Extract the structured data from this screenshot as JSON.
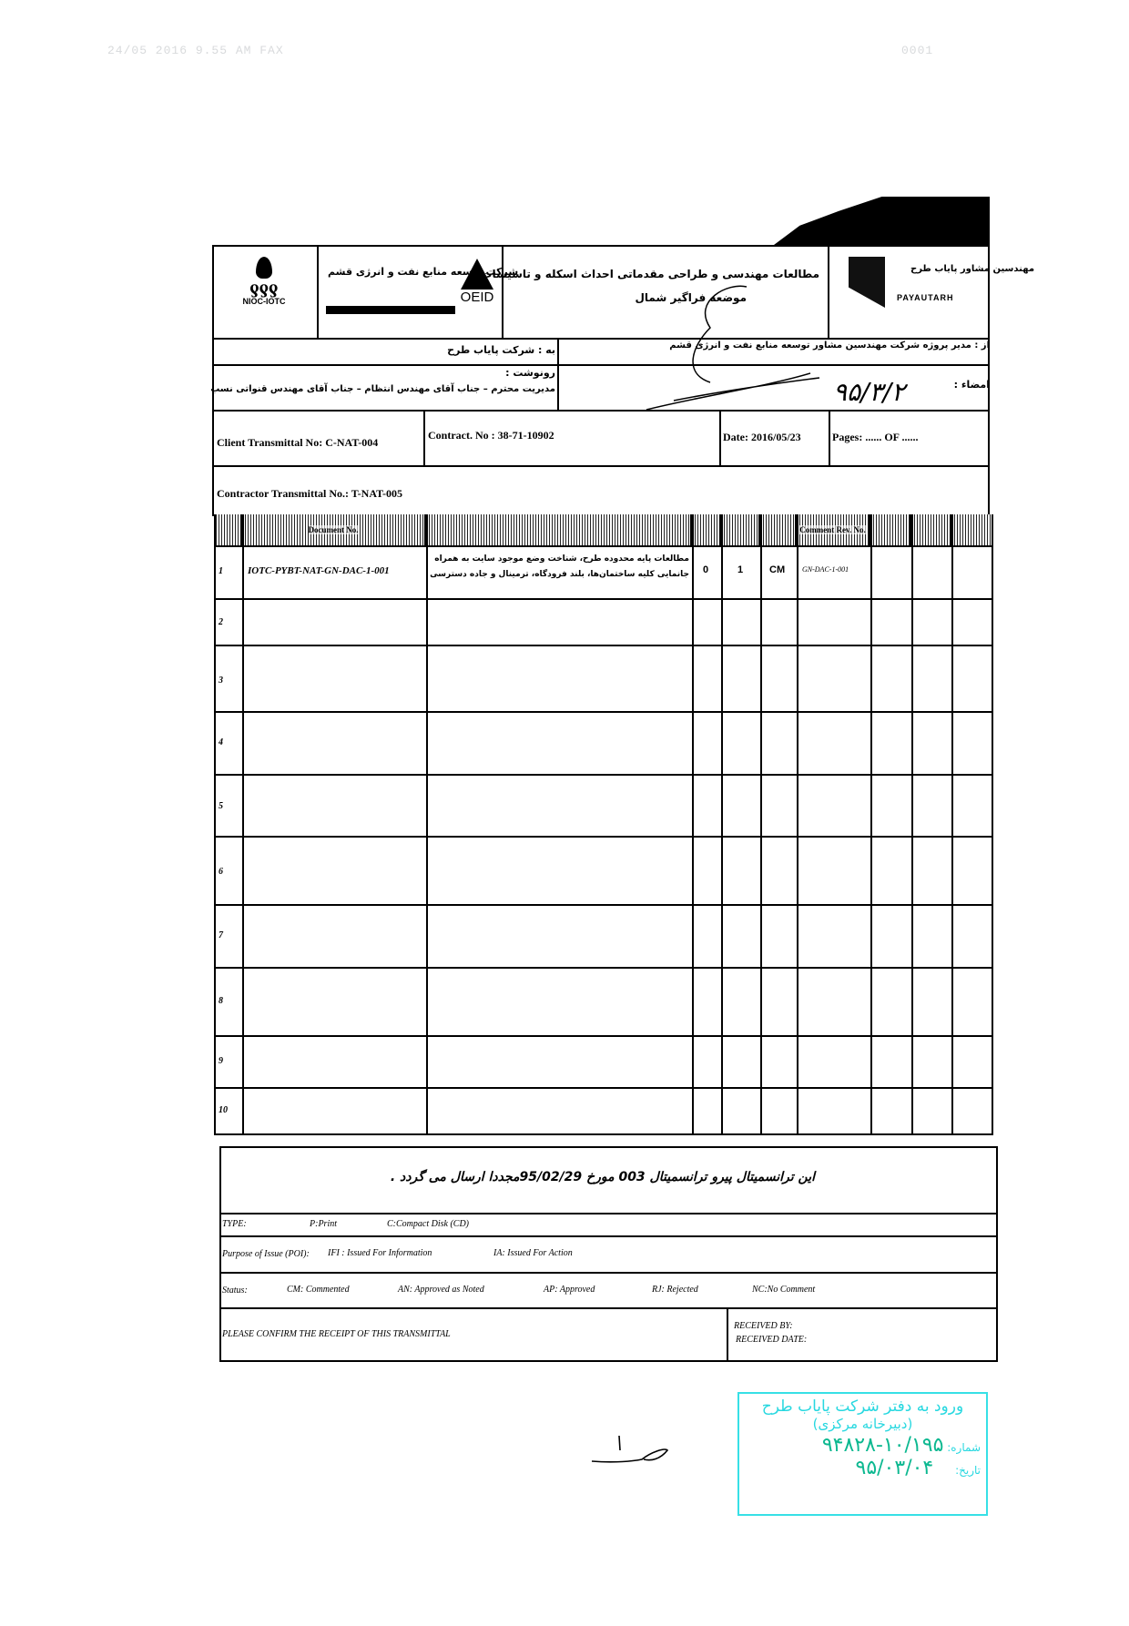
{
  "fax_header": {
    "left": "24/05 2016 9.55 AM FAX",
    "right": "0001"
  },
  "header": {
    "logo_left": "NIOC-IOTC",
    "logo_oeid": "OEID",
    "logo_oeid_fa": "شرکت توسعه منابع نفت و انرژی قشم",
    "title_line1": "مطالعات مهندسی و طراحی مقدماتی احداث اسکله و تاسیسات",
    "title_line2": "موضعه فراگیر شمال",
    "logo_right": "PAYAUTARH",
    "logo_right_fa": "مهندسین مشاور پایاب طرح"
  },
  "addressing": {
    "to": "به : شرکت پایاب طرح",
    "from": "از : مدیر پروژه شرکت مهندسین مشاور توسعه منابع نفت و انرژی قشم",
    "cc_label": "رونوشت :",
    "cc_value": "مدیریت محترم – جناب آقای مهندس انتظام – جناب آقای مهندس قنواتی نسب",
    "signature_label": "امضاء :",
    "signature_date": "۹۵/۳/۲"
  },
  "transmittal": {
    "client": "Client  Transmittal  No: C-NAT-004",
    "contract": "Contract. No :  38-71-10902",
    "date": "Date: 2016/05/23",
    "pages": "Pages: ......    OF ......",
    "contractor": "Contractor Transmittal No.:  T-NAT-005"
  },
  "table": {
    "headers": [
      "",
      "Document No.",
      "",
      "",
      "",
      "",
      "Comment Rev. No.",
      "",
      "",
      ""
    ],
    "rows": [
      {
        "no": "1",
        "doc": "IOTC-PYBT-NAT-GN-DAC-1-001",
        "title": "مطالعات پایه محدوده طرح، شناخت وضع موجود سایت به همراه جانمایی کلیه ساختمان‌ها، بلند فرودگاه، ترمینال و جاده دسترسی",
        "c1": "0",
        "c2": "1",
        "c3": "CM",
        "c4": "GN-DAC-1-001"
      },
      {
        "no": "2"
      },
      {
        "no": "3"
      },
      {
        "no": "4"
      },
      {
        "no": "5"
      },
      {
        "no": "6"
      },
      {
        "no": "7"
      },
      {
        "no": "8"
      },
      {
        "no": "9"
      },
      {
        "no": "10"
      }
    ]
  },
  "footer": {
    "note": "این ترانسمیتال پیرو ترانسمیتال 003 مورخ 95/02/29مجددا ارسال می گردد .",
    "type_label": "TYPE:",
    "type_p": "P:Print",
    "type_c": "C:Compact Disk (CD)",
    "poi_label": "Purpose of  Issue (POI):",
    "poi_ifi": "IFI : Issued For Information",
    "poi_ia": "IA: Issued For Action",
    "status_label": "Status:",
    "status_cm": "CM: Commented",
    "status_an": "AN: Approved as Noted",
    "status_ap": "AP: Approved",
    "status_rj": "RJ: Rejected",
    "status_nc": "NC:No Comment",
    "confirm": "PLEASE CONFIRM THE RECEIPT OF THIS TRANSMITTAL",
    "received_by": "RECEIVED BY:",
    "received_date": "RECEIVED DATE:"
  },
  "stamp": {
    "line1": "ورود به دفتر شرکت پایاب طرح",
    "line2": "(دبیرخانه مرکزی)",
    "number_label": "شماره:",
    "number": "۱۰/۱۹۵-۹۴۸۲۸",
    "date_label": "تاریخ:",
    "date": "۹۵/۰۳/۰۴",
    "color": "#28d8e0"
  }
}
